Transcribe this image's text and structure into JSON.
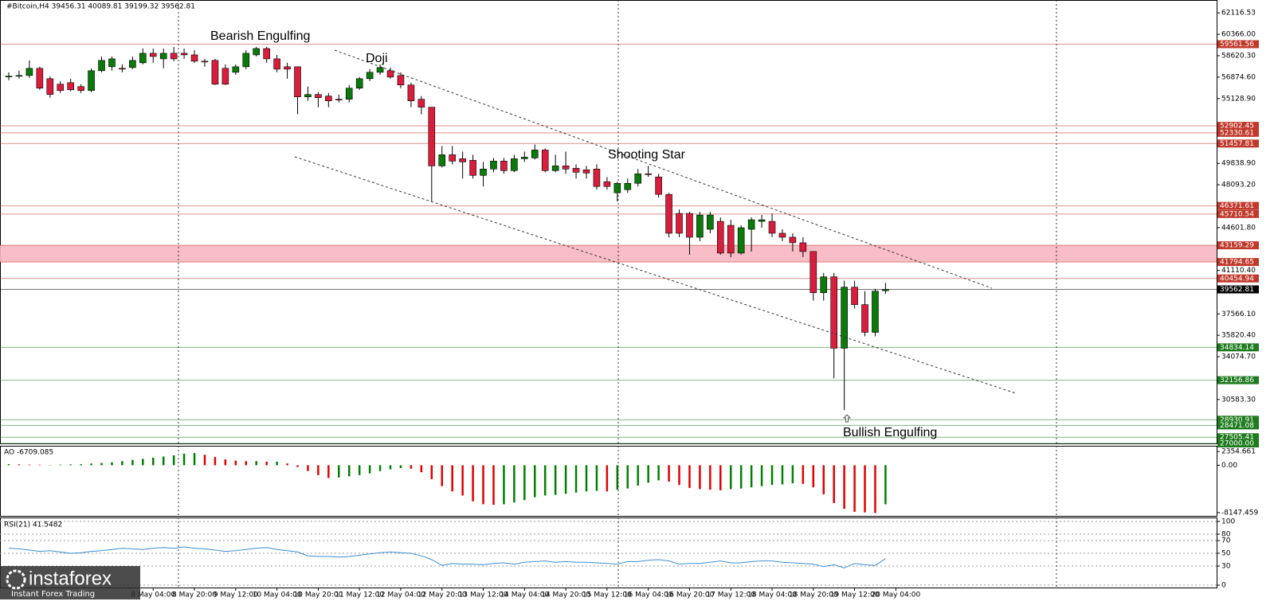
{
  "header": "#Bitcoin,H4  39456.31 40089.81 39199.32 39562.81",
  "logo": {
    "name": "instaforex",
    "tagline": "Instant Forex Trading"
  },
  "annotations": [
    "Bearish Engulfing",
    "Doji",
    "Shooting Star",
    "Bullish Engulfing"
  ],
  "chart_data": [
    {
      "type": "candlestick",
      "up_color": "#0a7a0a",
      "down_color": "#d81e3c",
      "xlim": [
        -0.85,
        117.1
      ],
      "ylim": [
        27000,
        63100
      ],
      "yticks": [
        {
          "value": 62116.53,
          "label": "62116.53"
        },
        {
          "value": 60366,
          "label": "60366.00"
        },
        {
          "value": 58620.3,
          "label": "58620.30"
        },
        {
          "value": 56874.6,
          "label": "56874.60"
        },
        {
          "value": 55128.9,
          "label": "55128.90"
        },
        {
          "value": 49838.9,
          "label": "49838.90"
        },
        {
          "value": 48093.2,
          "label": "48093.20"
        },
        {
          "value": 44601.8,
          "label": "44601.80"
        },
        {
          "value": 41110.4,
          "label": "41110.40"
        },
        {
          "value": 37566.1,
          "label": "37566.10"
        },
        {
          "value": 35820.4,
          "label": "35820.40"
        },
        {
          "value": 34074.7,
          "label": "34074.70"
        },
        {
          "value": 30583.3,
          "label": "30583.30"
        }
      ],
      "xticks": [
        {
          "value": 14,
          "label": "8 May 04:00"
        },
        {
          "value": 18,
          "label": "8 May 20:00"
        },
        {
          "value": 22,
          "label": "9 May 12:00"
        },
        {
          "value": 26,
          "label": "10 May 04:00"
        },
        {
          "value": 30,
          "label": "10 May 20:00"
        },
        {
          "value": 34,
          "label": "11 May 12:00"
        },
        {
          "value": 38,
          "label": "12 May 04:00"
        },
        {
          "value": 42,
          "label": "12 May 20:00"
        },
        {
          "value": 46,
          "label": "13 May 12:00"
        },
        {
          "value": 50,
          "label": "14 May 04:00"
        },
        {
          "value": 54,
          "label": "14 May 20:00"
        },
        {
          "value": 58,
          "label": "15 May 12:00"
        },
        {
          "value": 62,
          "label": "16 May 04:00"
        },
        {
          "value": 66,
          "label": "16 May 20:00"
        },
        {
          "value": 70,
          "label": "17 May 12:00"
        },
        {
          "value": 74,
          "label": "18 May 04:00"
        },
        {
          "value": 78,
          "label": "18 May 20:00"
        },
        {
          "value": 82,
          "label": "19 May 12:00"
        },
        {
          "value": 86,
          "label": "20 May 04:00"
        }
      ],
      "zone": {
        "from": 41794.65,
        "to": 43159.29,
        "color": "#f7b6c0"
      },
      "levels": [
        {
          "value": 59561.56,
          "label": "59561.56",
          "color": "#c0392b"
        },
        {
          "value": 52902.45,
          "label": "52902.45",
          "color": "#c0392b"
        },
        {
          "value": 52330.61,
          "label": "52330.61",
          "color": "#c0392b"
        },
        {
          "value": 51457.81,
          "label": "51457.81",
          "color": "#c0392b"
        },
        {
          "value": 46371.61,
          "label": "46371.61",
          "color": "#c0392b"
        },
        {
          "value": 45710.54,
          "label": "45710.54",
          "color": "#c0392b"
        },
        {
          "value": 43159.29,
          "label": "43159.29",
          "color": "#c0392b"
        },
        {
          "value": 41794.65,
          "label": "41794.65",
          "color": "#c0392b"
        },
        {
          "value": 40454.94,
          "label": "40454.94",
          "color": "#c0392b"
        },
        {
          "value": 39562.81,
          "label": "39562.81",
          "color": "#000000"
        },
        {
          "value": 34834.14,
          "label": "34834.14",
          "color": "#1e7b1e"
        },
        {
          "value": 32156.86,
          "label": "32156.86",
          "color": "#1e7b1e"
        },
        {
          "value": 28930.91,
          "label": "28930.91",
          "color": "#1e7b1e"
        },
        {
          "value": 28471.08,
          "label": "28471.08",
          "color": "#1e7b1e"
        },
        {
          "value": 27505.41,
          "label": "27505.41",
          "color": "#1e7b1e"
        },
        {
          "value": 27000,
          "label": "27000.00",
          "color": "#1e7b1e"
        }
      ],
      "ohlc": [
        [
          56944,
          57267,
          56621,
          56950
        ],
        [
          56950,
          57397,
          56750,
          57009
        ],
        [
          57009,
          58237,
          56815,
          57591
        ],
        [
          57591,
          57720,
          55845,
          55974
        ],
        [
          56750,
          56944,
          55198,
          55457
        ],
        [
          56297,
          56556,
          55586,
          55780
        ],
        [
          56427,
          56750,
          55715,
          55845
        ],
        [
          56103,
          56297,
          55586,
          55780
        ],
        [
          55780,
          57591,
          55651,
          57397
        ],
        [
          57397,
          58560,
          57267,
          58237
        ],
        [
          57720,
          58560,
          57397,
          58366
        ],
        [
          57591,
          57914,
          57267,
          57560
        ],
        [
          57655,
          58560,
          57526,
          58237
        ],
        [
          58043,
          59207,
          57914,
          58819
        ],
        [
          58819,
          59207,
          58043,
          58560
        ],
        [
          58366,
          59207,
          57591,
          58819
        ],
        [
          58819,
          59336,
          58173,
          58366
        ],
        [
          58819,
          59207,
          58366,
          58690
        ],
        [
          58690,
          59078,
          58043,
          58173
        ],
        [
          58173,
          58366,
          57720,
          58150
        ],
        [
          58237,
          58366,
          56233,
          56297
        ],
        [
          57591,
          57914,
          56233,
          56297
        ],
        [
          57267,
          57914,
          57073,
          57720
        ],
        [
          57720,
          59078,
          57526,
          58819
        ],
        [
          58690,
          59336,
          58560,
          59207
        ],
        [
          59207,
          59336,
          58043,
          58366
        ],
        [
          58366,
          58690,
          57267,
          57526
        ],
        [
          57720,
          58043,
          56750,
          57526
        ],
        [
          57720,
          57720,
          53840,
          55263
        ],
        [
          55263,
          56103,
          54940,
          55457
        ],
        [
          55457,
          55651,
          54422,
          55198
        ],
        [
          55327,
          55586,
          54422,
          54940
        ],
        [
          55069,
          55457,
          54810,
          55040
        ],
        [
          55069,
          56233,
          54810,
          55974
        ],
        [
          55974,
          56879,
          55845,
          56750
        ],
        [
          56750,
          57526,
          56556,
          57267
        ],
        [
          57267,
          57914,
          57073,
          57655
        ],
        [
          57397,
          57655,
          56750,
          56879
        ],
        [
          57009,
          57267,
          55974,
          56233
        ],
        [
          56233,
          56427,
          54422,
          54940
        ],
        [
          55069,
          55327,
          53840,
          54422
        ],
        [
          54422,
          54422,
          46728,
          49637
        ],
        [
          49637,
          51254,
          49508,
          50543
        ],
        [
          50543,
          51254,
          49767,
          50025
        ],
        [
          50219,
          50801,
          48603,
          49961
        ],
        [
          50090,
          50543,
          48603,
          48861
        ],
        [
          48861,
          49961,
          47956,
          49379
        ],
        [
          49379,
          50284,
          49120,
          50025
        ],
        [
          50025,
          50284,
          48991,
          49249
        ],
        [
          49249,
          50543,
          49120,
          50219
        ],
        [
          50219,
          50801,
          49961,
          50349
        ],
        [
          50284,
          51383,
          50155,
          50931
        ],
        [
          50931,
          51060,
          49120,
          49249
        ],
        [
          49249,
          50543,
          49120,
          49637
        ],
        [
          49637,
          50801,
          48991,
          49379
        ],
        [
          49443,
          49767,
          48603,
          49120
        ],
        [
          49314,
          49637,
          48603,
          49055
        ],
        [
          49379,
          49767,
          47698,
          47956
        ],
        [
          48344,
          48732,
          47698,
          47956
        ],
        [
          47439,
          48344,
          46728,
          48215
        ],
        [
          47698,
          48603,
          47439,
          48215
        ],
        [
          48215,
          49379,
          47956,
          48991
        ],
        [
          48991,
          49637,
          48732,
          48960
        ],
        [
          48732,
          48991,
          47051,
          47310
        ],
        [
          47310,
          47439,
          43818,
          44141
        ],
        [
          45758,
          46081,
          43818,
          44141
        ],
        [
          45758,
          45887,
          42395,
          43818
        ],
        [
          43818,
          45887,
          43495,
          45628
        ],
        [
          44465,
          45887,
          44141,
          45628
        ],
        [
          45111,
          45434,
          42395,
          42525
        ],
        [
          44788,
          45241,
          42201,
          42525
        ],
        [
          42525,
          44788,
          42395,
          44594
        ],
        [
          44465,
          45434,
          42654,
          45241
        ],
        [
          45111,
          45628,
          44594,
          45241
        ],
        [
          45111,
          45758,
          43818,
          44141
        ],
        [
          44141,
          44465,
          43495,
          43818
        ],
        [
          43818,
          44141,
          42654,
          43365
        ],
        [
          43365,
          43818,
          42201,
          42654
        ],
        [
          42654,
          42654,
          38645,
          39292
        ],
        [
          39292,
          40908,
          38645,
          40585
        ],
        [
          40585,
          40908,
          32309,
          34766
        ],
        [
          34766,
          40262,
          29722,
          39744
        ],
        [
          39744,
          40262,
          37999,
          38322
        ],
        [
          38322,
          39421,
          35735,
          36059
        ],
        [
          36059,
          39615,
          35735,
          39421
        ],
        [
          39456.31,
          40089.81,
          39199.32,
          39562.81
        ]
      ]
    },
    {
      "type": "bar",
      "title": "AO -6709.085",
      "up_color": "#008000",
      "down_color": "#e00000",
      "ylim": [
        -8700,
        3200
      ],
      "yticks": [
        {
          "value": 2354.661,
          "label": "2354.661"
        },
        {
          "value": 0,
          "label": "0.00"
        },
        {
          "value": -8147.459,
          "label": "-8147.459"
        }
      ],
      "values": [
        200,
        150,
        100,
        80,
        50,
        100,
        150,
        200,
        300,
        400,
        500,
        700,
        900,
        1100,
        1300,
        1500,
        1700,
        2000,
        2100,
        1800,
        1400,
        1000,
        800,
        700,
        700,
        600,
        600,
        300,
        -300,
        -1000,
        -1700,
        -2200,
        -2100,
        -1900,
        -1700,
        -1400,
        -1000,
        -700,
        -500,
        -600,
        -1200,
        -2400,
        -3600,
        -4500,
        -5200,
        -6200,
        -6700,
        -6800,
        -6700,
        -6400,
        -6000,
        -5500,
        -5200,
        -5100,
        -4900,
        -4700,
        -4500,
        -4400,
        -4500,
        -4200,
        -4000,
        -3500,
        -3000,
        -2600,
        -2800,
        -3400,
        -3900,
        -4100,
        -4200,
        -4300,
        -4100,
        -4000,
        -3800,
        -3600,
        -3400,
        -3300,
        -3100,
        -3200,
        -3800,
        -5000,
        -6500,
        -7500,
        -8000,
        -8100,
        -8200,
        -6709.085
      ]
    },
    {
      "type": "line",
      "title": "RSI(21) 41.5482",
      "color": "#3d8fd1",
      "ylim": [
        0,
        100
      ],
      "yticks": [
        0,
        30,
        50,
        70,
        80,
        100
      ],
      "values": [
        58,
        57,
        55,
        53,
        54,
        52,
        50,
        51,
        53,
        54,
        56,
        58,
        57,
        56,
        58,
        59,
        58,
        60,
        58,
        57,
        55,
        53,
        54,
        56,
        58,
        59,
        56,
        54,
        52,
        46,
        45,
        45,
        44,
        45,
        47,
        49,
        51,
        52,
        51,
        50,
        46,
        40,
        31,
        34,
        33,
        33,
        32,
        34,
        35,
        33,
        36,
        37,
        38,
        36,
        37,
        36,
        36,
        35,
        34,
        33,
        37,
        37,
        39,
        40,
        38,
        33,
        34,
        34,
        36,
        38,
        35,
        35,
        37,
        38,
        38,
        36,
        35,
        34,
        33,
        29,
        32,
        27,
        34,
        32,
        31,
        41.5482
      ]
    }
  ]
}
